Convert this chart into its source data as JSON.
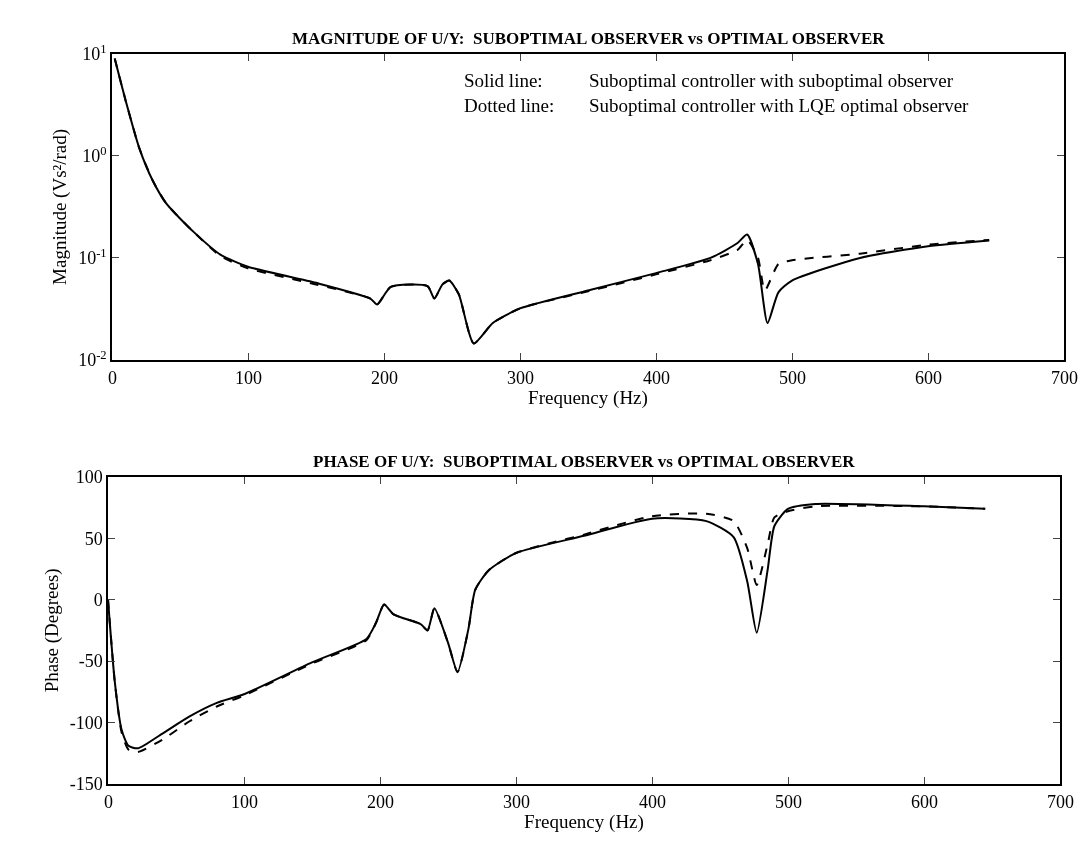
{
  "chart_data": [
    {
      "type": "line",
      "title": "MAGNITUDE OF U/Y:  SUBOPTIMAL OBSERVER vs OPTIMAL OBSERVER",
      "xlabel": "Frequency (Hz)",
      "ylabel": "Magnitude (Vs²/rad)",
      "log": "y",
      "xlim": [
        0,
        700
      ],
      "xticks": [
        0,
        100,
        200,
        300,
        400,
        500,
        600,
        700
      ],
      "ylim": [
        0.01,
        10
      ],
      "yticks": [
        {
          "value": 0.01,
          "label": "10$^{-2}$"
        },
        {
          "value": 0.1,
          "label": "10$^{-1}$"
        },
        {
          "value": 1,
          "label": "10$^{0}$"
        },
        {
          "value": 10,
          "label": "10$^{1}$"
        }
      ],
      "annotations": [
        "Solid line:",
        "Suboptimal controller with suboptimal observer",
        "Dotted line:",
        "Suboptimal controller with LQE optimal observer"
      ],
      "series": [
        {
          "color": "#000000",
          "line_style": "solid",
          "x": [
            2,
            10,
            20,
            30,
            40,
            60,
            80,
            100,
            150,
            190,
            195,
            205,
            232,
            237,
            243,
            248,
            255,
            266,
            280,
            300,
            350,
            400,
            440,
            460,
            467,
            475,
            482,
            490,
            500,
            550,
            600,
            645
          ],
          "values": [
            9,
            3.5,
            1.2,
            0.57,
            0.34,
            0.18,
            0.107,
            0.082,
            0.057,
            0.04,
            0.035,
            0.052,
            0.053,
            0.04,
            0.055,
            0.06,
            0.044,
            0.0145,
            0.023,
            0.032,
            0.048,
            0.071,
            0.1,
            0.14,
            0.17,
            0.087,
            0.023,
            0.046,
            0.06,
            0.1,
            0.13,
            0.148
          ]
        },
        {
          "color": "#000000",
          "line_style": "dashed",
          "x": [
            2,
            10,
            20,
            30,
            40,
            60,
            80,
            100,
            150,
            190,
            195,
            205,
            232,
            237,
            243,
            248,
            255,
            266,
            280,
            300,
            350,
            400,
            440,
            460,
            467,
            475,
            480,
            490,
            500,
            550,
            600,
            645
          ],
          "values": [
            9,
            3.5,
            1.2,
            0.57,
            0.34,
            0.18,
            0.104,
            0.079,
            0.055,
            0.04,
            0.035,
            0.052,
            0.053,
            0.04,
            0.055,
            0.06,
            0.044,
            0.0145,
            0.023,
            0.032,
            0.047,
            0.069,
            0.095,
            0.12,
            0.15,
            0.1,
            0.048,
            0.087,
            0.095,
            0.11,
            0.135,
            0.15
          ]
        }
      ]
    },
    {
      "type": "line",
      "title": "PHASE OF U/Y:  SUBOPTIMAL OBSERVER vs OPTIMAL OBSERVER",
      "xlabel": "Frequency (Hz)",
      "ylabel": "Phase (Degrees)",
      "xlim": [
        0,
        700
      ],
      "xticks": [
        0,
        100,
        200,
        300,
        400,
        500,
        600,
        700
      ],
      "ylim": [
        -150,
        100
      ],
      "yticks": [
        -150,
        -100,
        -50,
        0,
        50,
        100
      ],
      "series": [
        {
          "color": "#000000",
          "line_style": "solid",
          "x": [
            0,
            5,
            10,
            15,
            22,
            40,
            60,
            80,
            100,
            150,
            190,
            197,
            203,
            210,
            230,
            235,
            240,
            250,
            257,
            265,
            270,
            280,
            300,
            350,
            400,
            440,
            460,
            470,
            477,
            485,
            490,
            500,
            520,
            600,
            645
          ],
          "values": [
            0,
            -67,
            -106,
            -119,
            -121,
            -109,
            -95,
            -84,
            -77,
            -51,
            -32,
            -19,
            -4,
            -12,
            -20,
            -25,
            -7,
            -35,
            -59,
            -24,
            8,
            24,
            38,
            52,
            66,
            64,
            51,
            15,
            -27,
            24,
            60,
            74,
            78,
            76,
            74
          ]
        },
        {
          "color": "#000000",
          "line_style": "dashed",
          "x": [
            0,
            5,
            10,
            15,
            22,
            40,
            60,
            80,
            100,
            150,
            190,
            197,
            203,
            210,
            230,
            235,
            240,
            250,
            257,
            265,
            270,
            280,
            300,
            350,
            400,
            440,
            460,
            470,
            477,
            485,
            490,
            500,
            520,
            600,
            645
          ],
          "values": [
            0,
            -67,
            -108,
            -122,
            -124,
            -114,
            -99,
            -87,
            -78,
            -52,
            -33,
            -19,
            -4,
            -12,
            -20,
            -25,
            -7,
            -35,
            -59,
            -24,
            8,
            24,
            38,
            53,
            68,
            70,
            64,
            42,
            12,
            45,
            67,
            72,
            76,
            76,
            74
          ]
        }
      ]
    }
  ]
}
